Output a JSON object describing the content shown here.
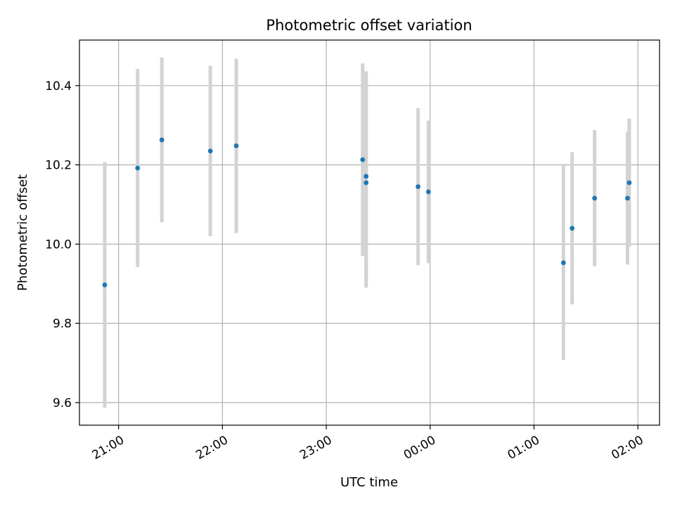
{
  "chart_data": {
    "type": "scatter",
    "title": "Photometric offset variation",
    "xlabel": "UTC time",
    "ylabel": "Photometric offset",
    "x_ticks": [
      {
        "minutes": -180,
        "label": "21:00"
      },
      {
        "minutes": -120,
        "label": "22:00"
      },
      {
        "minutes": -60,
        "label": "23:00"
      },
      {
        "minutes": 0,
        "label": "00:00"
      },
      {
        "minutes": 60,
        "label": "01:00"
      },
      {
        "minutes": 120,
        "label": "02:00"
      }
    ],
    "y_ticks": [
      {
        "value": 9.6,
        "label": "9.6"
      },
      {
        "value": 9.8,
        "label": "9.8"
      },
      {
        "value": 10.0,
        "label": "10.0"
      },
      {
        "value": 10.2,
        "label": "10.2"
      },
      {
        "value": 10.4,
        "label": "10.4"
      }
    ],
    "xlim_minutes": [
      -202.6,
      132.5
    ],
    "ylim": [
      9.543,
      10.515
    ],
    "grid": true,
    "colors": {
      "point": "#1f77b4",
      "errorbar": "#d3d3d3",
      "grid": "#b0b0b0"
    },
    "points": [
      {
        "time": "20:52",
        "y": 9.897,
        "err": 0.31
      },
      {
        "time": "21:11",
        "y": 10.192,
        "err": 0.25
      },
      {
        "time": "21:25",
        "y": 10.263,
        "err": 0.208
      },
      {
        "time": "21:53",
        "y": 10.235,
        "err": 0.215
      },
      {
        "time": "22:08",
        "y": 10.248,
        "err": 0.22
      },
      {
        "time": "23:21",
        "y": 10.213,
        "err": 0.243
      },
      {
        "time": "23:23",
        "y": 10.155,
        "err": 0.265
      },
      {
        "time": "23:23",
        "y": 10.171,
        "err": 0.265
      },
      {
        "time": "23:53",
        "y": 10.145,
        "err": 0.198
      },
      {
        "time": "23:59",
        "y": 10.132,
        "err": 0.18
      },
      {
        "time": "01:17",
        "y": 9.953,
        "err": 0.245
      },
      {
        "time": "01:22",
        "y": 10.04,
        "err": 0.192
      },
      {
        "time": "01:35",
        "y": 10.116,
        "err": 0.172
      },
      {
        "time": "01:54",
        "y": 10.116,
        "err": 0.168
      },
      {
        "time": "01:55",
        "y": 10.155,
        "err": 0.162
      }
    ]
  }
}
